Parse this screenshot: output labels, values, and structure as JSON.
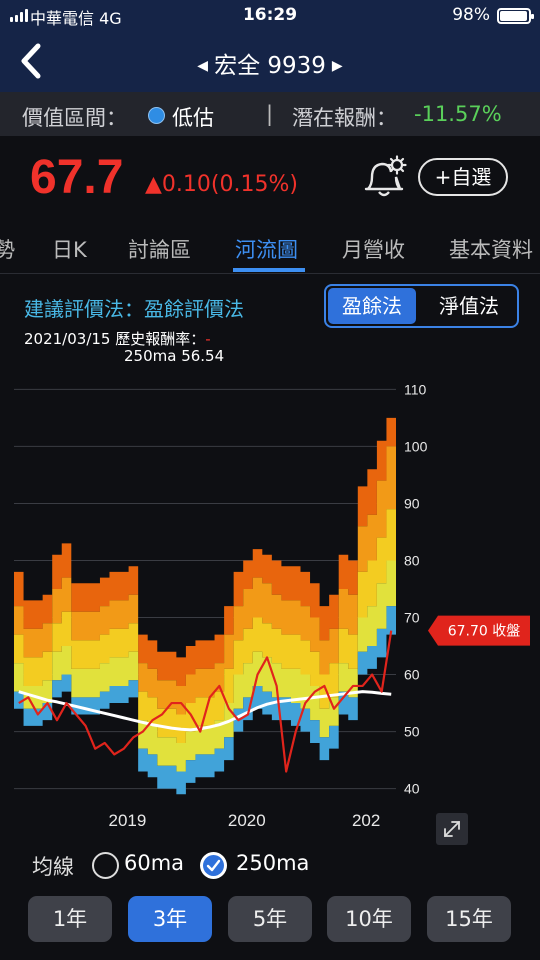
{
  "status": {
    "carrier": "中華電信  4G",
    "time": "16:29",
    "battery": "98%"
  },
  "nav": {
    "title": "宏全 9939"
  },
  "valuation": {
    "range_label": "價值區間：",
    "range_value": "低估",
    "separator": "|",
    "return_label": "潛在報酬：",
    "return_value": "-11.57%"
  },
  "quote": {
    "price": "67.7",
    "change": "▲0.10(0.15%)",
    "watch_label": "+自選"
  },
  "tabs": [
    "勢",
    "日K",
    "討論區",
    "河流圖",
    "月營收",
    "基本資料"
  ],
  "active_tab": "河流圖",
  "chart_header": {
    "method": "建議評價法：盈餘評價法",
    "seg_active": "盈餘法",
    "seg_other": "淨值法",
    "date": "2021/03/15 歷史報酬率：",
    "date_dash": "-",
    "ma_line": "250ma 56.54"
  },
  "chart_data": {
    "type": "area",
    "y_ticks": [
      "110",
      "100",
      "90",
      "80",
      "70",
      "60",
      "50",
      "40"
    ],
    "ylim": [
      38,
      112
    ],
    "x_ticks": [
      "2019",
      "2020",
      "202"
    ],
    "x_tick_values": [
      2019.0,
      2020.0,
      2021.0
    ],
    "xlim": [
      2018.05,
      2021.25
    ],
    "price_tag": "67.70 收盤",
    "price_value": 67.7,
    "band_colors": [
      "#e8650d",
      "#f29a17",
      "#f3cc21",
      "#e1e13c",
      "#41a3d9"
    ],
    "line_colors": {
      "price": "#e0241c",
      "ma250": "#ffffff"
    },
    "x": [
      2018.05,
      2018.13,
      2018.21,
      2018.29,
      2018.37,
      2018.45,
      2018.53,
      2018.61,
      2018.69,
      2018.77,
      2018.85,
      2018.93,
      2019.01,
      2019.09,
      2019.17,
      2019.25,
      2019.33,
      2019.41,
      2019.49,
      2019.57,
      2019.65,
      2019.73,
      2019.81,
      2019.89,
      2019.97,
      2020.05,
      2020.13,
      2020.21,
      2020.29,
      2020.37,
      2020.45,
      2020.53,
      2020.61,
      2020.69,
      2020.77,
      2020.85,
      2020.93,
      2021.01,
      2021.09,
      2021.17
    ],
    "bands": [
      [
        54,
        51,
        51,
        52,
        56,
        57,
        53,
        53,
        53,
        54,
        55,
        55,
        56,
        43,
        42,
        40,
        40,
        39,
        41,
        42,
        42,
        43,
        45,
        50,
        52,
        54,
        53,
        52,
        52,
        51,
        50,
        48,
        45,
        47,
        53,
        52,
        60,
        61,
        63,
        67
      ],
      [
        57,
        54,
        54,
        55,
        59,
        60,
        56,
        56,
        56,
        57,
        58,
        58,
        59,
        47,
        46,
        44,
        44,
        43,
        45,
        46,
        46,
        47,
        49,
        54,
        56,
        58,
        57,
        56,
        56,
        55,
        54,
        52,
        49,
        51,
        57,
        56,
        64,
        65,
        68,
        72
      ],
      [
        62,
        58,
        58,
        59,
        64,
        65,
        61,
        61,
        61,
        62,
        63,
        63,
        64,
        52,
        51,
        49,
        49,
        48,
        50,
        51,
        51,
        52,
        55,
        60,
        62,
        64,
        63,
        62,
        61,
        61,
        60,
        58,
        54,
        56,
        62,
        61,
        70,
        72,
        76,
        80
      ],
      [
        67,
        63,
        63,
        64,
        69,
        71,
        66,
        66,
        66,
        67,
        68,
        68,
        69,
        57,
        56,
        54,
        54,
        53,
        55,
        56,
        56,
        57,
        61,
        66,
        68,
        70,
        69,
        68,
        67,
        67,
        66,
        64,
        60,
        62,
        68,
        67,
        78,
        80,
        84,
        89
      ],
      [
        72,
        68,
        68,
        69,
        75,
        77,
        71,
        71,
        71,
        72,
        73,
        73,
        74,
        62,
        61,
        59,
        59,
        58,
        60,
        61,
        61,
        62,
        67,
        72,
        75,
        77,
        76,
        74,
        73,
        73,
        72,
        70,
        66,
        68,
        75,
        74,
        86,
        88,
        94,
        100
      ],
      [
        78,
        73,
        73,
        74,
        81,
        83,
        76,
        76,
        76,
        77,
        78,
        78,
        79,
        67,
        66,
        64,
        64,
        63,
        65,
        66,
        66,
        67,
        72,
        78,
        80,
        82,
        81,
        80,
        79,
        79,
        78,
        76,
        72,
        74,
        81,
        80,
        93,
        96,
        101,
        105
      ]
    ],
    "series": [
      {
        "values": [
          55,
          56,
          53,
          55,
          52,
          55,
          53,
          51,
          47,
          48,
          46,
          47,
          49,
          50,
          52,
          53,
          55,
          55,
          53,
          50,
          56,
          58,
          54,
          52,
          53,
          60,
          63,
          58,
          43,
          50,
          55,
          57,
          58,
          54,
          56,
          58,
          58,
          60,
          57,
          67.7
        ]
      },
      {
        "values": [
          57,
          56.5,
          56,
          55.5,
          55.2,
          54.8,
          54.4,
          54,
          53.6,
          53.2,
          52.8,
          52.4,
          52,
          51.6,
          51.2,
          50.9,
          50.6,
          50.4,
          50.3,
          50.5,
          50.8,
          51.2,
          51.8,
          52.6,
          53.4,
          54.2,
          54.8,
          55.2,
          55.4,
          55.6,
          55.8,
          56,
          56.2,
          56.4,
          56.6,
          56.8,
          57,
          56.9,
          56.7,
          56.54
        ]
      }
    ]
  },
  "ma": {
    "label": "均線",
    "opt60": "60ma",
    "opt250": "250ma"
  },
  "ranges": [
    "1年",
    "3年",
    "5年",
    "10年",
    "15年"
  ],
  "active_range": "3年"
}
